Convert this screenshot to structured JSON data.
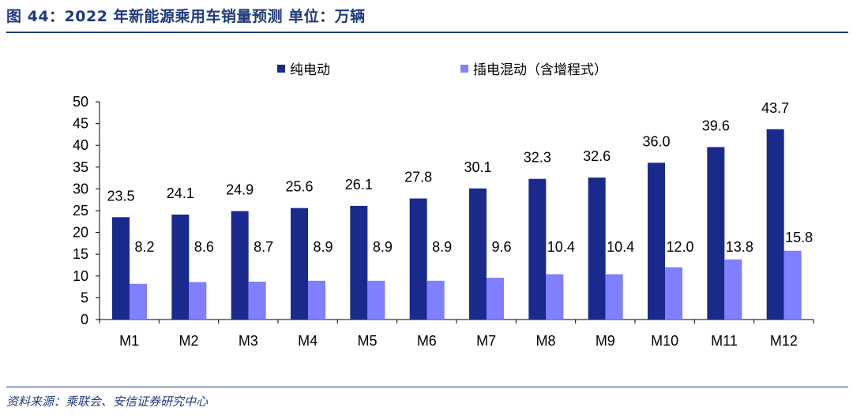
{
  "title": "图 44：2022 年新能源乘用车销量预测  单位：万辆",
  "source": "资料来源：乘联会、安信证券研究中心",
  "chart_data": {
    "type": "bar",
    "categories": [
      "M1",
      "M2",
      "M3",
      "M4",
      "M5",
      "M6",
      "M7",
      "M8",
      "M9",
      "M10",
      "M11",
      "M12"
    ],
    "series": [
      {
        "name": "纯电动",
        "color": "#1a2a8c",
        "values": [
          23.5,
          24.1,
          24.9,
          25.6,
          26.1,
          27.8,
          30.1,
          32.3,
          32.6,
          36.0,
          39.6,
          43.7
        ],
        "labels": [
          "23.5",
          "24.1",
          "24.9",
          "25.6",
          "26.1",
          "27.8",
          "30.1",
          "32.3",
          "32.6",
          "36.0",
          "39.6",
          "43.7"
        ]
      },
      {
        "name": "插电混动（含增程式）",
        "color": "#7f7fff",
        "values": [
          8.2,
          8.6,
          8.7,
          8.9,
          8.9,
          8.9,
          9.6,
          10.4,
          10.4,
          12.0,
          13.8,
          15.8
        ],
        "labels": [
          "8.2",
          "8.6",
          "8.7",
          "8.9",
          "8.9",
          "8.9",
          "9.6",
          "10.4",
          "10.4",
          "12.0",
          "13.8",
          "15.8"
        ]
      }
    ],
    "yticks": [
      "0",
      "5",
      "10",
      "15",
      "20",
      "25",
      "30",
      "35",
      "40",
      "45",
      "50"
    ],
    "ylim": [
      0,
      50
    ],
    "legend_position": "top-center",
    "grid": false
  }
}
